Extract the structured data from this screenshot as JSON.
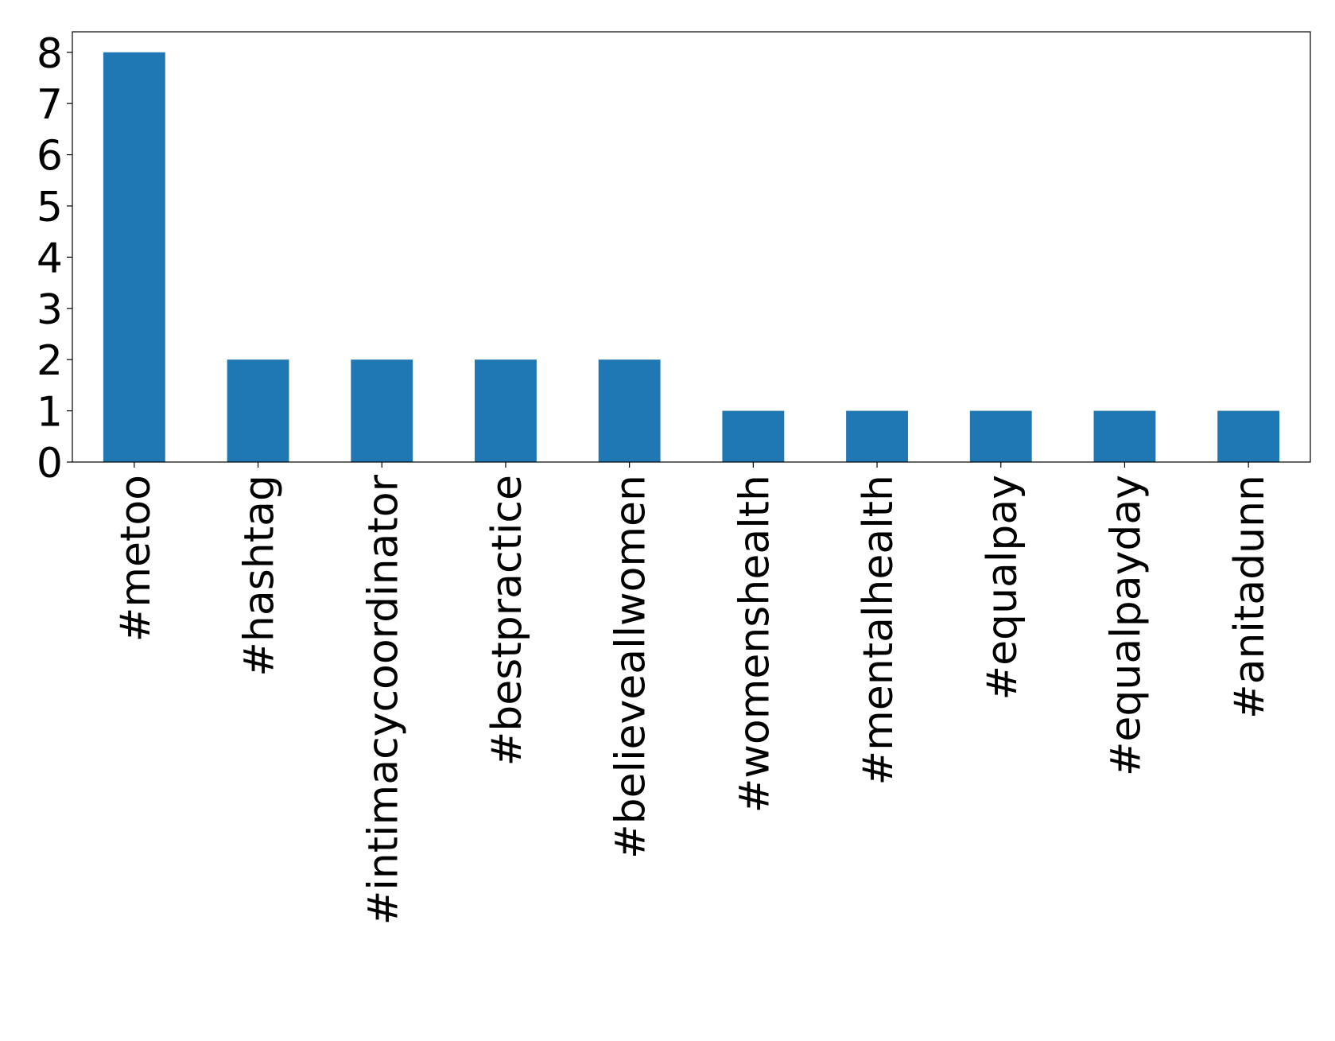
{
  "chart_data": {
    "type": "bar",
    "categories": [
      "#metoo",
      "#hashtag",
      "#intimacycoordinator",
      "#bestpractice",
      "#believeallwomen",
      "#womenshealth",
      "#mentalhealth",
      "#equalpay",
      "#equalpayday",
      "#anitadunn"
    ],
    "values": [
      8,
      2,
      2,
      2,
      2,
      1,
      1,
      1,
      1,
      1
    ],
    "color": "#1f77b4",
    "ylim": [
      0,
      8.4
    ],
    "yticks": [
      0,
      1,
      2,
      3,
      4,
      5,
      6,
      7,
      8
    ],
    "grid": false
  }
}
